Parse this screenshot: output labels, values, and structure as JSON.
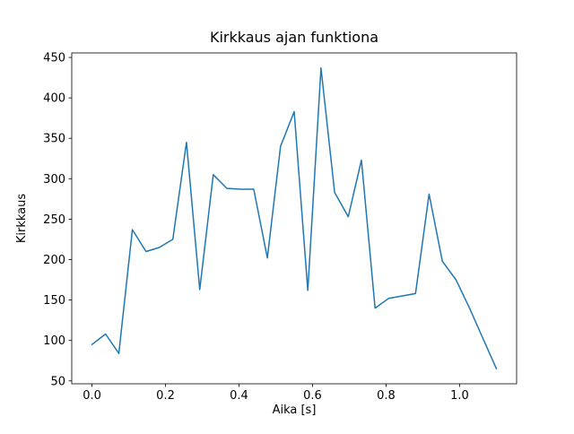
{
  "figure": {
    "background": "#ffffff"
  },
  "chart_data": {
    "type": "line",
    "title": "Kirkkaus ajan funktiona",
    "xlabel": "Aika [s]",
    "ylabel": "Kirkkaus",
    "x": [
      0.0,
      0.037,
      0.073,
      0.11,
      0.147,
      0.183,
      0.22,
      0.257,
      0.293,
      0.33,
      0.367,
      0.403,
      0.44,
      0.477,
      0.513,
      0.55,
      0.587,
      0.623,
      0.66,
      0.697,
      0.733,
      0.77,
      0.807,
      0.843,
      0.88,
      0.917,
      0.953,
      0.99,
      1.027,
      1.063,
      1.1
    ],
    "y": [
      95,
      108,
      84,
      237,
      210,
      215,
      225,
      345,
      163,
      305,
      288,
      287,
      287,
      202,
      340,
      383,
      162,
      437,
      283,
      253,
      323,
      140,
      152,
      155,
      158,
      281,
      198,
      175,
      140,
      103,
      65
    ],
    "xlim": [
      -0.055,
      1.155
    ],
    "ylim": [
      46.4,
      455.6
    ],
    "xtick_values": [
      0.0,
      0.2,
      0.4,
      0.6,
      0.8,
      1.0
    ],
    "xtick_labels": [
      "0.0",
      "0.2",
      "0.4",
      "0.6",
      "0.8",
      "1.0"
    ],
    "ytick_values": [
      50,
      100,
      150,
      200,
      250,
      300,
      350,
      400,
      450
    ],
    "ytick_labels": [
      "50",
      "100",
      "150",
      "200",
      "250",
      "300",
      "350",
      "400",
      "450"
    ],
    "line_color": "#1f77b4",
    "line_width": 1.5,
    "spine_color": "#000000",
    "grid": false,
    "legend_position": "none"
  }
}
